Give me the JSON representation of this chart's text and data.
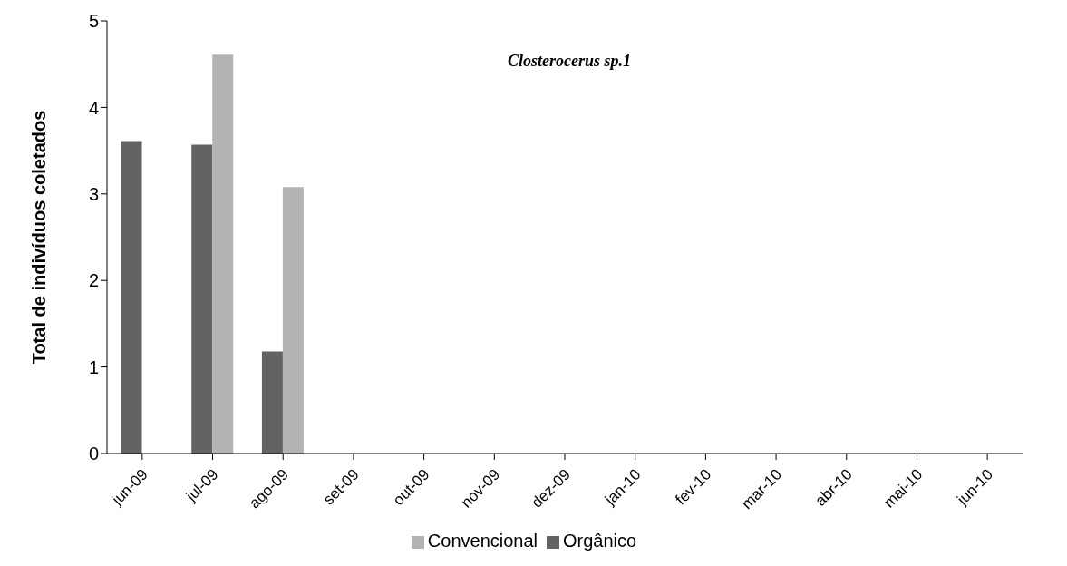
{
  "chart_data": {
    "type": "bar",
    "title": "Closterocerus sp.1",
    "ylabel": "Total de indivíduos coletados",
    "categories": [
      "jun-09",
      "jul-09",
      "ago-09",
      "set-09",
      "out-09",
      "nov-09",
      "dez-09",
      "jan-10",
      "fev-10",
      "mar-10",
      "abr-10",
      "mai-10",
      "jun-10"
    ],
    "series": [
      {
        "name": "Orgânico",
        "color": "#636363",
        "values": [
          3.61,
          3.57,
          1.18,
          0,
          0,
          0,
          0,
          0,
          0,
          0,
          0,
          0,
          0
        ]
      },
      {
        "name": "Convencional",
        "color": "#b3b3b3",
        "values": [
          0,
          4.61,
          3.08,
          0,
          0,
          0,
          0,
          0,
          0,
          0,
          0,
          0,
          0
        ]
      }
    ],
    "ylim": [
      0,
      5
    ],
    "yticks": [
      0,
      1,
      2,
      3,
      4,
      5
    ],
    "grid": false,
    "legend": "bottom"
  }
}
